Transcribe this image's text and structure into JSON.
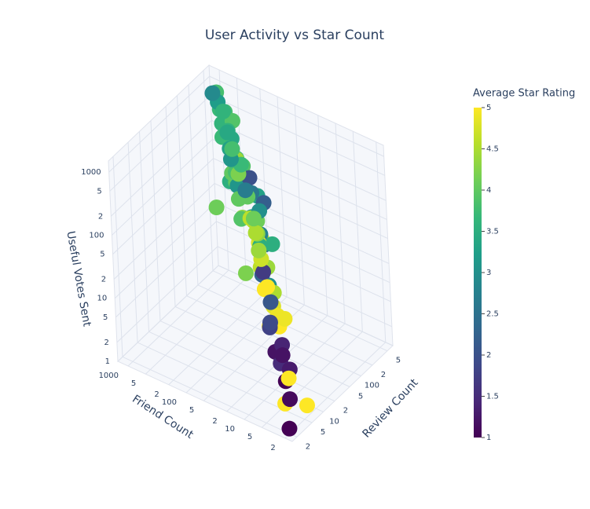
{
  "chart_data": {
    "type": "scatter3d",
    "title": "User Activity vs Star Count",
    "x_title": "Review Count",
    "y_title": "Friend Count",
    "z_title": "Useful Votes Sent",
    "colorbar_title": "Average Star Rating",
    "log": true,
    "x": [
      12,
      45,
      230,
      8,
      150,
      60,
      3,
      95,
      310,
      20,
      70,
      180,
      5,
      40,
      120,
      15,
      260,
      33,
      88,
      7,
      210,
      50,
      140,
      25,
      400,
      11,
      65,
      170,
      4,
      36,
      105,
      290,
      18,
      75,
      9,
      130,
      55,
      220,
      28,
      160,
      6,
      82,
      350,
      14,
      48,
      190,
      22,
      110,
      2,
      58,
      240,
      31,
      90,
      10,
      145,
      68,
      200,
      16,
      380,
      42,
      125,
      27,
      85,
      6,
      175,
      52,
      270,
      19,
      100,
      35,
      155,
      8,
      62,
      330,
      24,
      115,
      13,
      78,
      190,
      44
    ],
    "y": [
      30,
      120,
      400,
      8,
      250,
      60,
      3,
      90,
      600,
      15,
      45,
      180,
      4,
      200,
      80,
      10,
      500,
      25,
      150,
      6,
      300,
      40,
      70,
      20,
      800,
      12,
      100,
      220,
      3,
      35,
      160,
      350,
      9,
      55,
      5,
      110,
      28,
      450,
      18,
      130,
      2,
      65,
      700,
      14,
      85,
      240,
      22,
      95,
      2,
      50,
      380,
      30,
      140,
      7,
      210,
      75,
      320,
      11,
      900,
      38,
      170,
      26,
      60,
      4,
      190,
      48,
      420,
      16,
      105,
      33,
      260,
      6,
      58,
      550,
      21,
      125,
      13,
      72,
      280,
      42
    ],
    "z": [
      40,
      300,
      900,
      5,
      150,
      80,
      2,
      60,
      700,
      12,
      35,
      200,
      3,
      100,
      120,
      8,
      500,
      30,
      180,
      4,
      400,
      55,
      90,
      20,
      1000,
      9,
      70,
      250,
      2,
      25,
      140,
      600,
      10,
      45,
      3,
      110,
      50,
      350,
      15,
      160,
      1.5,
      65,
      800,
      7,
      85,
      220,
      18,
      130,
      1.2,
      40,
      450,
      22,
      100,
      6,
      170,
      75,
      280,
      11,
      950,
      48,
      190,
      28,
      95,
      3,
      210,
      60,
      380,
      14,
      115,
      35,
      240,
      5,
      52,
      650,
      19,
      125,
      9,
      70,
      300,
      38
    ],
    "color": [
      4.2,
      3.5,
      3.8,
      1.2,
      4.0,
      4.5,
      5,
      3.2,
      3.7,
      4.8,
      2.5,
      3.9,
      1,
      4.1,
      3.3,
      5,
      3.6,
      4.4,
      4.0,
      1.5,
      3.4,
      4.7,
      2.2,
      3.0,
      3.8,
      5,
      4.3,
      3.6,
      1.1,
      4.6,
      3.1,
      3.9,
      4.9,
      2.8,
      1.3,
      4.2,
      3.5,
      3.7,
      4.5,
      2.0,
      5,
      4.1,
      3.2,
      1.8,
      3.9,
      4.4,
      5,
      2.6,
      1,
      4.8,
      3.6,
      2.3,
      4.0,
      1.4,
      3.8,
      4.6,
      3.3,
      4.9,
      2.9,
      3.5,
      4.2,
      1.7,
      3.0,
      5,
      3.7,
      4.3,
      3.4,
      2.1,
      4.0,
      4.7,
      3.1,
      1.2,
      4.5,
      3.6,
      5,
      2.7,
      1.9,
      4.1,
      3.8,
      4.4
    ],
    "xlim": [
      1.5,
      700
    ],
    "ylim": [
      1.5,
      1500
    ],
    "zlim": [
      1,
      1500
    ],
    "xticks": [
      2,
      5,
      10,
      {
        "value": 20,
        "label": "2"
      },
      {
        "value": 50,
        "label": "5"
      },
      100,
      {
        "value": 200,
        "label": "2"
      },
      {
        "value": 500,
        "label": "5"
      }
    ],
    "yticks": [
      2,
      5,
      10,
      {
        "value": 20,
        "label": "2"
      },
      {
        "value": 50,
        "label": "5"
      },
      100,
      {
        "value": 200,
        "label": "2"
      },
      {
        "value": 500,
        "label": "5"
      },
      1000
    ],
    "zticks": [
      1,
      2,
      5,
      10,
      {
        "value": 20,
        "label": "2"
      },
      {
        "value": 50,
        "label": "5"
      },
      100,
      {
        "value": 200,
        "label": "2"
      },
      {
        "value": 500,
        "label": "5"
      },
      1000
    ],
    "colorscale": [
      "#440154",
      "#482878",
      "#3e4989",
      "#31688e",
      "#26828e",
      "#1f9e89",
      "#35b779",
      "#6ece58",
      "#b5de2b",
      "#fde725"
    ],
    "clim": [
      1,
      5
    ],
    "cticks": [
      1,
      1.5,
      2,
      2.5,
      3,
      3.5,
      4,
      4.5,
      5
    ]
  }
}
